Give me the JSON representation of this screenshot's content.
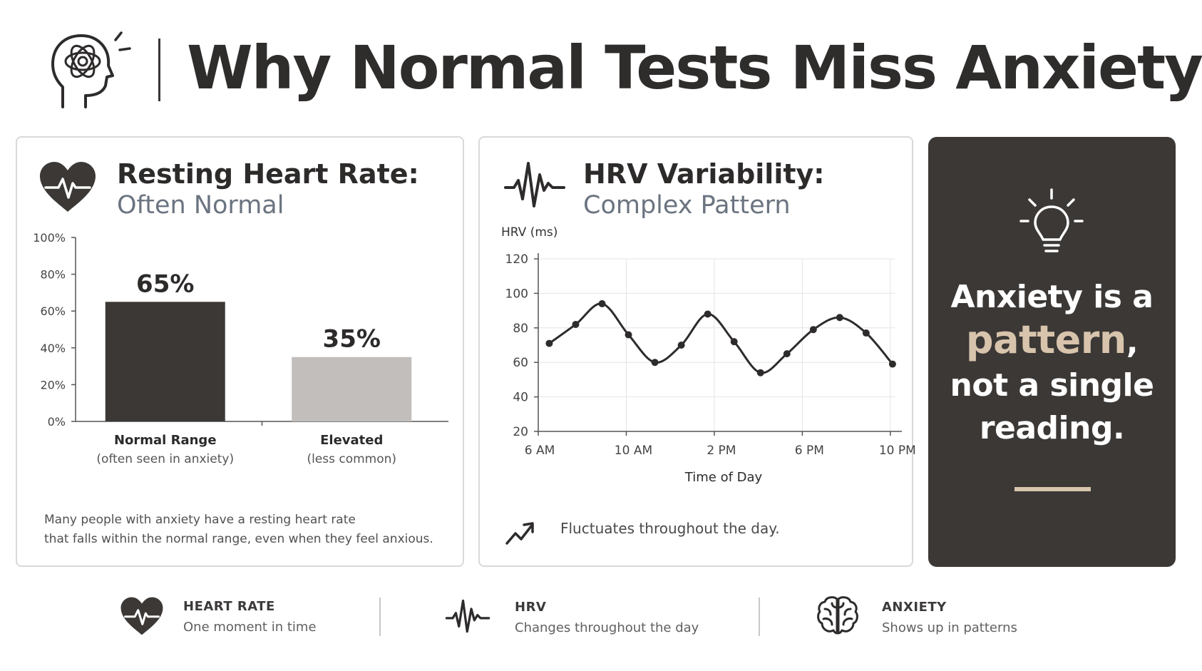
{
  "header": {
    "title": "Why Normal Tests Miss Anxiety",
    "icon": "head-brain-icon"
  },
  "resting_heart_rate": {
    "title": "Resting Heart Rate:",
    "subtitle": "Often Normal",
    "icon": "heart-pulse-icon",
    "note_line1": "Many people with anxiety have a resting heart rate",
    "note_line2": "that falls within the normal range, even when they feel anxious."
  },
  "hrv": {
    "title": "HRV Variability:",
    "subtitle": "Complex Pattern",
    "icon": "pulse-wave-icon",
    "note": "Fluctuates throughout the day.",
    "note_icon": "trend-zigzag-icon"
  },
  "message": {
    "line1": "Anxiety is a",
    "accent": "pattern",
    "comma": ",",
    "line3": "not a single",
    "line4": "reading.",
    "icon": "lightbulb-icon",
    "accent_color": "#d8c4ac",
    "background_color": "#3b3836"
  },
  "chart_data": [
    {
      "type": "bar",
      "categories": [
        "Normal Range",
        "Elevated"
      ],
      "category_notes": [
        "(often seen in anxiety)",
        "(less common)"
      ],
      "values": [
        65,
        35
      ],
      "value_labels": [
        "65%",
        "35%"
      ],
      "yticks": [
        "0%",
        "20%",
        "40%",
        "60%",
        "80%",
        "100%"
      ],
      "ylim": [
        0,
        100
      ],
      "colors": [
        "#3b3836",
        "#c2bebb"
      ],
      "grid": false
    },
    {
      "type": "line",
      "ylabel": "HRV (ms)",
      "xlabel": "Time of Day",
      "xticks": [
        "6 AM",
        "10 AM",
        "2 PM",
        "6 PM",
        "10 PM"
      ],
      "xtick_hours": [
        6,
        10,
        14,
        18,
        22
      ],
      "yticks": [
        20,
        40,
        60,
        80,
        100,
        120
      ],
      "ylim": [
        20,
        120
      ],
      "xlim": [
        6,
        22.2
      ],
      "x": [
        6.5,
        7.7,
        8.9,
        10.1,
        11.3,
        12.5,
        13.7,
        14.9,
        16.1,
        17.3,
        18.5,
        19.7,
        20.9,
        22.1
      ],
      "y": [
        71,
        82,
        94,
        76,
        60,
        70,
        88,
        72,
        54,
        65,
        79,
        86,
        77,
        59
      ],
      "line_color": "#2e2b2b",
      "grid": true
    }
  ],
  "footer": {
    "items": [
      {
        "title": "HEART RATE",
        "desc": "One moment in time",
        "icon": "heart-pulse-icon"
      },
      {
        "title": "HRV",
        "desc": "Changes throughout the day",
        "icon": "pulse-wave-icon"
      },
      {
        "title": "ANXIETY",
        "desc": "Shows up in patterns",
        "icon": "brain-icon"
      }
    ]
  }
}
